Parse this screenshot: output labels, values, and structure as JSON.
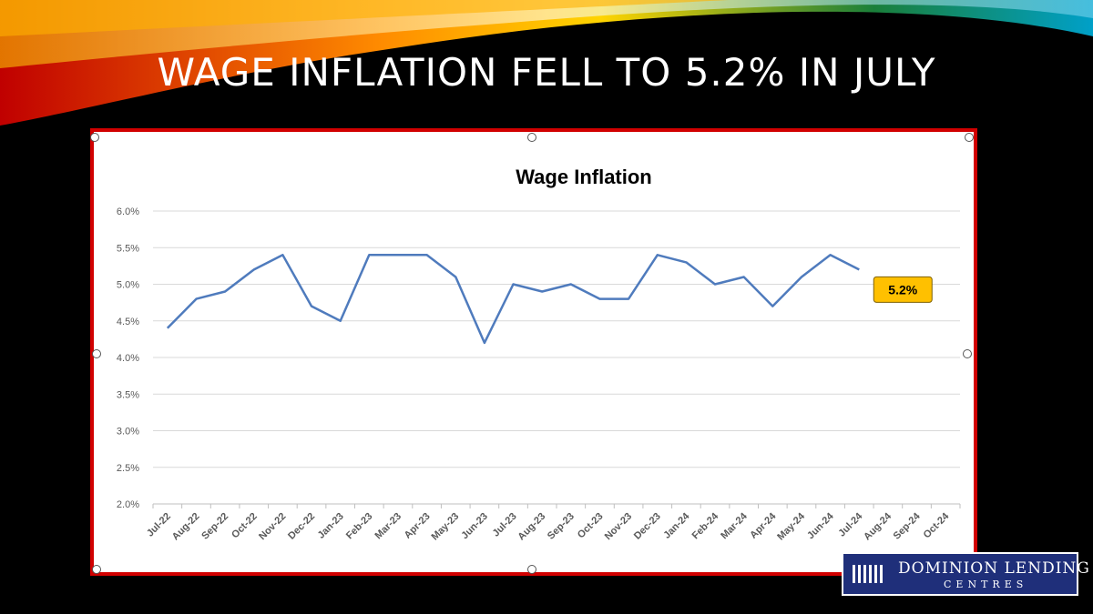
{
  "slide": {
    "title": "WAGE INFLATION FELL TO 5.2% IN JULY"
  },
  "logo": {
    "name": "DOMINION LENDING",
    "subtitle": "CENTRES"
  },
  "colors": {
    "background": "#000000",
    "frame": "#d10000",
    "line": "#4f7bbd",
    "callout_fill": "#ffc000",
    "gridline": "#d9d9d9"
  },
  "chart_data": {
    "type": "line",
    "title": "Wage Inflation",
    "xlabel": "",
    "ylabel": "",
    "categories": [
      "Jul-22",
      "Aug-22",
      "Sep-22",
      "Oct-22",
      "Nov-22",
      "Dec-22",
      "Jan-23",
      "Feb-23",
      "Mar-23",
      "Apr-23",
      "May-23",
      "Jun-23",
      "Jul-23",
      "Aug-23",
      "Sep-23",
      "Oct-23",
      "Nov-23",
      "Dec-23",
      "Jan-24",
      "Feb-24",
      "Mar-24",
      "Apr-24",
      "May-24",
      "Jun-24",
      "Jul-24",
      "Aug-24",
      "Sep-24",
      "Oct-24"
    ],
    "series": [
      {
        "values": [
          4.4,
          4.8,
          4.9,
          5.2,
          5.4,
          4.7,
          4.5,
          5.4,
          5.4,
          5.4,
          5.1,
          4.2,
          5.0,
          4.9,
          5.0,
          4.8,
          4.8,
          5.4,
          5.3,
          5.0,
          5.1,
          4.7,
          5.1,
          5.4,
          5.2,
          null,
          null,
          null
        ]
      }
    ],
    "yticks": [
      "2.0%",
      "2.5%",
      "3.0%",
      "3.5%",
      "4.0%",
      "4.5%",
      "5.0%",
      "5.5%",
      "6.0%"
    ],
    "ylim": [
      2.0,
      6.0
    ],
    "grid": true,
    "legend": "none",
    "annotation": {
      "category": "Jul-24",
      "text": "5.2%"
    }
  }
}
